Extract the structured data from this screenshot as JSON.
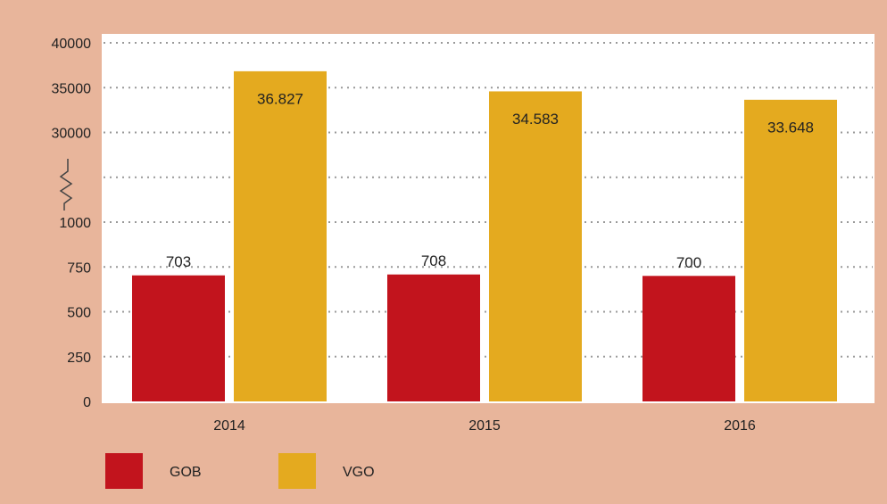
{
  "chart_data": {
    "type": "bar",
    "categories": [
      "2014",
      "2015",
      "2016"
    ],
    "series": [
      {
        "name": "GOB",
        "color": "#c2141d",
        "values": [
          703,
          708,
          700
        ]
      },
      {
        "name": "VGO",
        "color": "#e4aa1f",
        "values": [
          36827,
          34583,
          33648
        ],
        "value_labels": [
          "36.827",
          "34.583",
          "33.648"
        ]
      }
    ],
    "ylim": [
      0,
      40000
    ],
    "yticks": [
      0,
      250,
      500,
      750,
      1000,
      30000,
      35000,
      40000
    ],
    "axis_break": [
      1000,
      30000
    ],
    "grid": true,
    "legend": "bottom"
  }
}
